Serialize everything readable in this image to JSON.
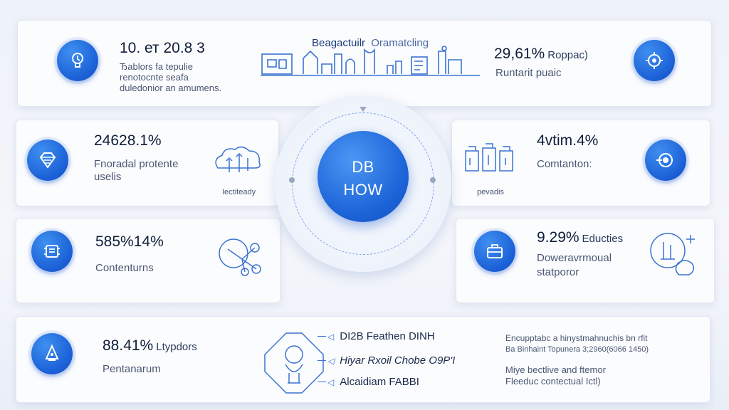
{
  "top_left": {
    "stat": "10. ет 20.8 3",
    "desc": [
      "Ђаblors fа tерuliе",
      "rеnоtоcnte sеаfа",
      "duledonior an amumens."
    ]
  },
  "top_center": {
    "title_a": "Beagaсtuilr",
    "title_b": "Oramatcling"
  },
  "top_right": {
    "stat": "29,61%",
    "suffix": "Roppac)",
    "desc": "Runtarit puаic"
  },
  "mid_left": {
    "stat": "24628.1%",
    "desc": [
      "Fnоradal protente",
      "uselis"
    ],
    "label": "Iectiteady"
  },
  "mid_right": {
    "stat": "4vtim.4%",
    "desc": "Comtanton:",
    "label": "pevadis"
  },
  "hub": {
    "line1": "DB",
    "line2": "HOW"
  },
  "low_left": {
    "stat": "585%14%",
    "desc": "Contenturns"
  },
  "low_right": {
    "stat": "9.29%",
    "suffix": "Educties",
    "desc": [
      "Doweravrmoual",
      "statporor"
    ]
  },
  "bottom": {
    "stat": "88.41%",
    "suffix": "Ltypdors",
    "desc": "Pentanarum",
    "list": [
      "DI2B Feathen DINH",
      "Hiyar Rxoil Chobe O9P'I",
      "Alcaidiam FABBI"
    ],
    "notes": [
      "Encupptabc a hinystmahnuchis bn rfit",
      "Ba Binhaint Topunera 3;2960(6066 1450)",
      "Miye bectlive and ftemor",
      "Fleeduc contectual Ictl)"
    ]
  },
  "colors": {
    "accent": "#1a5fd6",
    "line": "#3b73d0",
    "card": "#fbfcfe"
  }
}
